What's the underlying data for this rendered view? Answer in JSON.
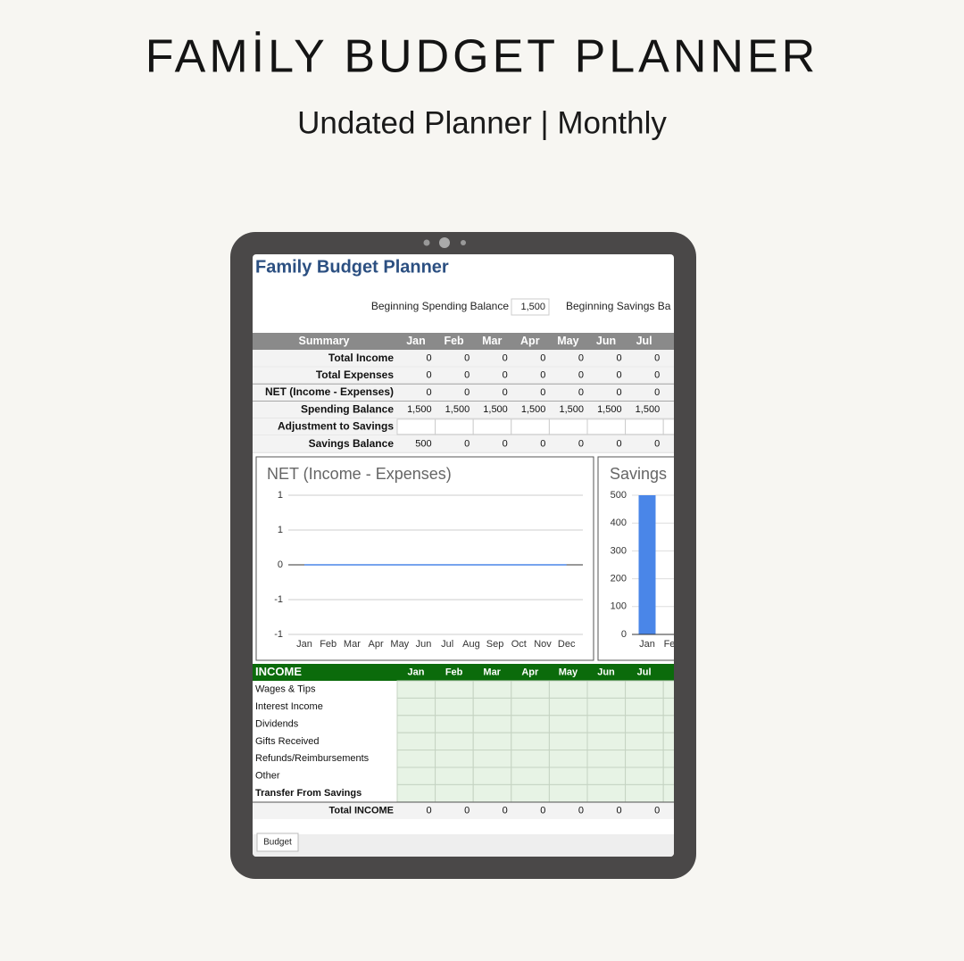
{
  "header": {
    "title": "FAMİLY BUDGET PLANNER",
    "subtitle": "Undated Planner | Monthly"
  },
  "sheet": {
    "title": "Family Budget Planner",
    "spending_label": "Beginning Spending Balance",
    "spending_value": "1,500",
    "savings_label": "Beginning Savings Ba",
    "summary": {
      "columns": [
        "Summary",
        "Jan",
        "Feb",
        "Mar",
        "Apr",
        "May",
        "Jun",
        "Jul",
        "A"
      ],
      "rows": [
        {
          "label": "Total Income",
          "values": [
            0,
            0,
            0,
            0,
            0,
            0,
            0
          ]
        },
        {
          "label": "Total Expenses",
          "values": [
            0,
            0,
            0,
            0,
            0,
            0,
            0
          ]
        },
        {
          "label": "NET (Income - Expenses)",
          "values": [
            0,
            0,
            0,
            0,
            0,
            0,
            0
          ]
        },
        {
          "label": "Spending Balance",
          "values": [
            "1,500",
            "1,500",
            "1,500",
            "1,500",
            "1,500",
            "1,500",
            "1,500"
          ]
        },
        {
          "label": "Adjustment to Savings"
        },
        {
          "label": "Savings Balance",
          "values": [
            500,
            0,
            0,
            0,
            0,
            0,
            0
          ]
        }
      ]
    },
    "net_chart": {
      "title": "NET (Income - Expenses)",
      "ylim": [
        -1,
        1
      ],
      "yticks": [
        {
          "value": 1,
          "label": "1"
        },
        {
          "value": 0.5,
          "label": "1"
        },
        0,
        {
          "value": -0.5,
          "label": "-1"
        },
        {
          "value": -1,
          "label": "-1"
        }
      ],
      "categories": [
        "Jan",
        "Feb",
        "Mar",
        "Apr",
        "May",
        "Jun",
        "Jul",
        "Aug",
        "Sep",
        "Oct",
        "Nov",
        "Dec"
      ],
      "values": [
        0,
        0,
        0,
        0,
        0,
        0,
        0,
        0,
        0,
        0,
        0,
        0
      ]
    },
    "savings_chart": {
      "title": "Savings",
      "ylim": [
        0,
        500
      ],
      "yticks": [
        500,
        400,
        300,
        200,
        100,
        0
      ],
      "categories": [
        "Jan",
        "Fe"
      ],
      "values": [
        500,
        0
      ],
      "color": "#4a86e8"
    },
    "income": {
      "columns": [
        "INCOME",
        "Jan",
        "Feb",
        "Mar",
        "Apr",
        "May",
        "Jun",
        "Jul",
        "A"
      ],
      "rows": [
        "Wages & Tips",
        "Interest Income",
        "Dividends",
        "Gifts Received",
        "Refunds/Reimbursements",
        "Other",
        "Transfer From Savings"
      ],
      "total_label": "Total INCOME",
      "totals": [
        0,
        0,
        0,
        0,
        0,
        0,
        0
      ]
    },
    "tab": "Budget"
  }
}
